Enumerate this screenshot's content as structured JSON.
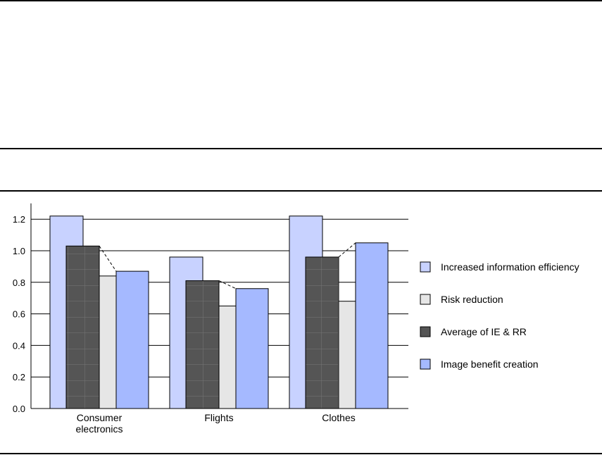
{
  "chart_data": {
    "type": "bar",
    "title": "",
    "xlabel": "",
    "ylabel": "",
    "categories": [
      [
        "Consumer",
        "electronics"
      ],
      [
        "Flights"
      ],
      [
        "Clothes"
      ]
    ],
    "yticks": [
      "0.0",
      "0.2",
      "0.4",
      "0.6",
      "0.8",
      "1.0",
      "1.2"
    ],
    "ylim": [
      0,
      1.3
    ],
    "grid": true,
    "legend_position": "right",
    "series": [
      {
        "name": "Increased information efficiency",
        "color": "#c8d2ff",
        "values": [
          1.22,
          0.96,
          1.22
        ]
      },
      {
        "name": "Risk reduction",
        "color": "#e6e6e6",
        "values": [
          0.84,
          0.65,
          0.68
        ]
      },
      {
        "name": "Average of IE & RR",
        "color": "#555555",
        "pattern": "grid",
        "values": [
          1.03,
          0.81,
          0.96
        ]
      },
      {
        "name": "Image benefit creation",
        "color": "#a5b9ff",
        "values": [
          0.87,
          0.76,
          1.05
        ]
      }
    ],
    "connectors": "dashed line from Average of IE & RR to Image benefit creation"
  }
}
